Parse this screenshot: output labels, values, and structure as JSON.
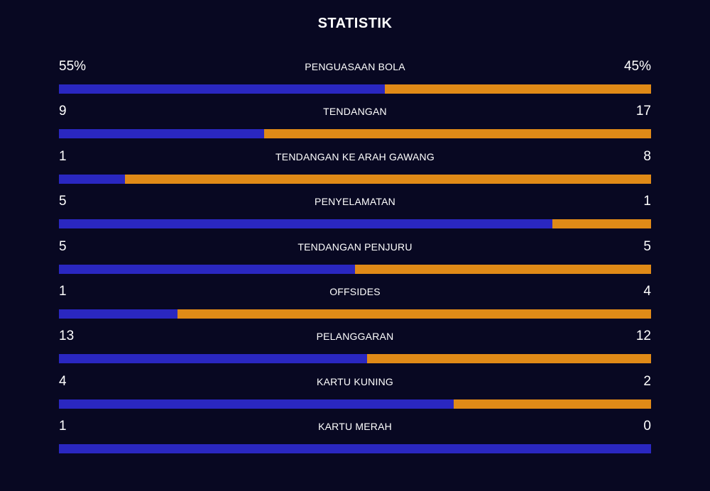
{
  "title": "STATISTIK",
  "colors": {
    "background": "#080822",
    "home": "#2a27c0",
    "away": "#e08a17"
  },
  "stats": [
    {
      "label": "PENGUASAAN BOLA",
      "home": "55%",
      "away": "45%",
      "home_value": 55,
      "away_value": 45
    },
    {
      "label": "TENDANGAN",
      "home": "9",
      "away": "17",
      "home_value": 9,
      "away_value": 17
    },
    {
      "label": "TENDANGAN KE ARAH GAWANG",
      "home": "1",
      "away": "8",
      "home_value": 1,
      "away_value": 8
    },
    {
      "label": "PENYELAMATAN",
      "home": "5",
      "away": "1",
      "home_value": 5,
      "away_value": 1
    },
    {
      "label": "TENDANGAN PENJURU",
      "home": "5",
      "away": "5",
      "home_value": 5,
      "away_value": 5
    },
    {
      "label": "OFFSIDES",
      "home": "1",
      "away": "4",
      "home_value": 1,
      "away_value": 4
    },
    {
      "label": "PELANGGARAN",
      "home": "13",
      "away": "12",
      "home_value": 13,
      "away_value": 12
    },
    {
      "label": "KARTU KUNING",
      "home": "4",
      "away": "2",
      "home_value": 4,
      "away_value": 2
    },
    {
      "label": "KARTU MERAH",
      "home": "1",
      "away": "0",
      "home_value": 1,
      "away_value": 0
    }
  ]
}
